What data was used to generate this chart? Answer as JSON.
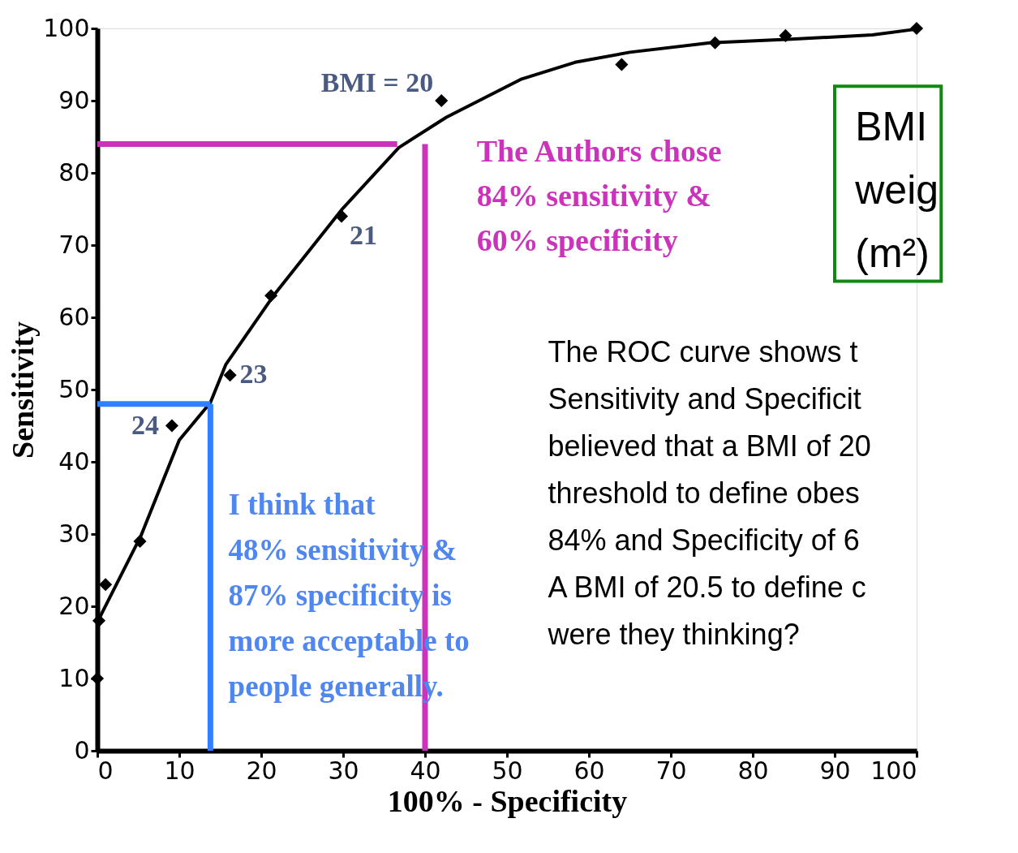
{
  "chart_data": {
    "type": "scatter",
    "xlabel": "100% - Specificity",
    "ylabel": "Sensitivity",
    "xlim": [
      0,
      100
    ],
    "ylim": [
      0,
      100
    ],
    "xticks": [
      0,
      10,
      20,
      30,
      40,
      50,
      60,
      70,
      80,
      90,
      100
    ],
    "yticks": [
      0,
      10,
      20,
      30,
      40,
      50,
      60,
      70,
      80,
      90,
      100
    ],
    "grid": false,
    "series": [
      {
        "marker": "diamond",
        "color": "#000000",
        "x": [
          0,
          0.2,
          1,
          5.2,
          9.1,
          16.2,
          21.2,
          29.8,
          42,
          64,
          75.4,
          84,
          100
        ],
        "values": [
          10,
          18,
          23,
          29,
          45,
          52,
          63,
          74,
          90,
          95,
          98,
          99,
          100
        ]
      },
      {
        "type": "line",
        "marker": "none",
        "color": "#000000",
        "x": [
          0,
          5.3,
          10,
          13.8,
          15.7,
          21.5,
          29.9,
          36.8,
          42.6,
          51.8,
          58.3,
          65,
          74.8,
          84.7,
          94.6,
          100
        ],
        "values": [
          17.8,
          29.7,
          43,
          48.2,
          53.5,
          63,
          75,
          83.5,
          87.7,
          93,
          95.3,
          96.7,
          98,
          98.5,
          99.1,
          99.9
        ]
      },
      {
        "type": "line",
        "marker": "none",
        "color": "#cc33bb",
        "x": [
          0,
          36.6
        ],
        "values": [
          84,
          84
        ]
      },
      {
        "type": "line",
        "marker": "none",
        "color": "#cc33bb",
        "x": [
          40,
          40
        ],
        "values": [
          0,
          84
        ]
      },
      {
        "type": "line",
        "marker": "none",
        "color": "#3080ff",
        "x": [
          0,
          13.8
        ],
        "values": [
          48,
          48
        ]
      },
      {
        "type": "line",
        "marker": "none",
        "color": "#3080ff",
        "x": [
          13.8,
          13.8
        ],
        "values": [
          0,
          48
        ]
      }
    ],
    "annotations": [
      {
        "text": "BMI = 20",
        "x": 42,
        "y": 90
      },
      {
        "text": "21",
        "x": 29.8,
        "y": 74
      },
      {
        "text": "23",
        "x": 16.2,
        "y": 52
      },
      {
        "text": "24",
        "x": 9.1,
        "y": 45
      },
      "The Authors chose\n84% sensitivity &\n60% specificity",
      "I think that\n48% sensitivity &\n87% specificity is\nmore acceptable to\npeople generally.",
      "The ROC curve shows t\nSensitivity and Specificit\nbelieved that a BMI of 20\nthreshold to define obes\n84% and Specificity of 6\nA BMI of 20.5 to define c\nwere they thinking?",
      "BMI\nweig\n(m²)"
    ]
  }
}
